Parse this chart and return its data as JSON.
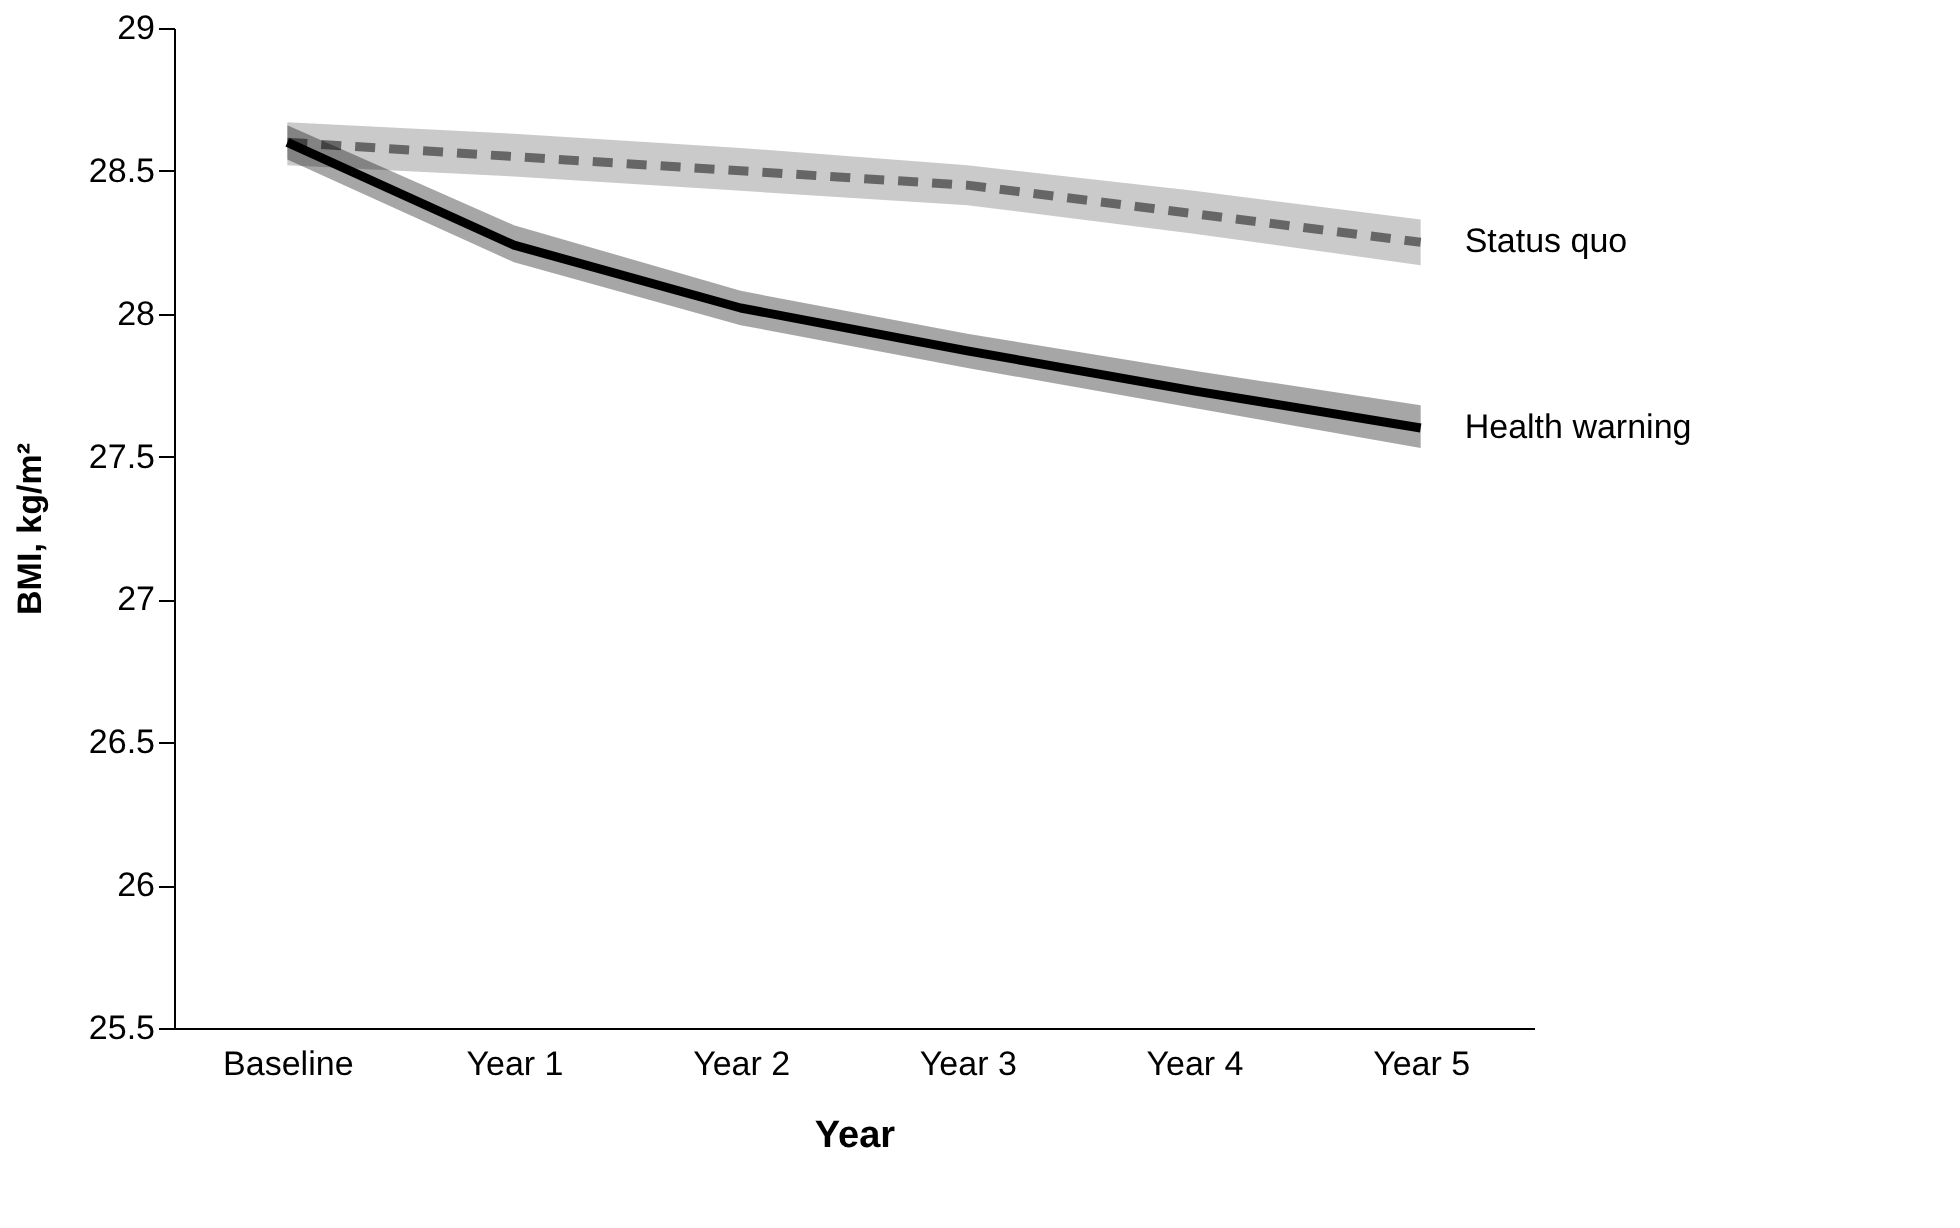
{
  "chart_data": {
    "type": "line",
    "xlabel": "Year",
    "ylabel": "BMI, kg/m²",
    "categories": [
      "Baseline",
      "Year 1",
      "Year 2",
      "Year 3",
      "Year 4",
      "Year 5"
    ],
    "series": [
      {
        "name": "Status quo",
        "color": "#666666",
        "line_style": "dashed",
        "values": [
          28.6,
          28.55,
          28.5,
          28.45,
          28.35,
          28.25
        ],
        "lower": [
          28.52,
          28.48,
          28.43,
          28.38,
          28.28,
          28.17
        ],
        "upper": [
          28.67,
          28.63,
          28.58,
          28.52,
          28.43,
          28.33
        ]
      },
      {
        "name": "Health warning",
        "color": "#000000",
        "line_style": "solid",
        "values": [
          28.6,
          28.24,
          28.02,
          27.87,
          27.73,
          27.6
        ],
        "lower": [
          28.54,
          28.18,
          27.96,
          27.81,
          27.67,
          27.53
        ],
        "upper": [
          28.66,
          28.31,
          28.08,
          27.93,
          27.8,
          27.68
        ]
      }
    ],
    "ylim": [
      25.5,
      29
    ],
    "yticks": [
      25.5,
      26,
      26.5,
      27,
      27.5,
      28,
      28.5,
      29
    ],
    "grid": false
  }
}
